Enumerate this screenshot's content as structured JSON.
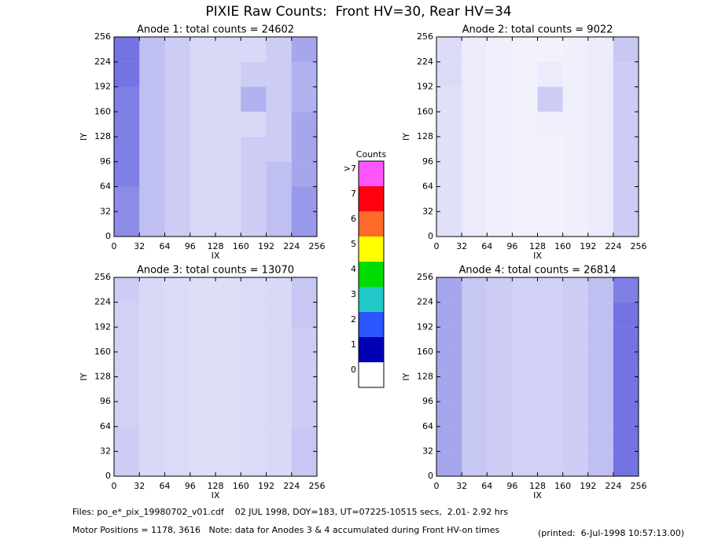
{
  "title": "PIXIE Raw Counts:  Front HV=30, Rear HV=34",
  "chart_data": [
    {
      "type": "heatmap",
      "title": "Anode 1: total counts = 24602",
      "xlabel": "IX",
      "ylabel": "IY",
      "xlim": [
        0,
        256
      ],
      "ylim": [
        0,
        256
      ],
      "xticks": [
        0,
        32,
        64,
        96,
        128,
        160,
        192,
        224,
        256
      ],
      "yticks": [
        0,
        32,
        64,
        96,
        128,
        160,
        192,
        224,
        256
      ],
      "xbins": [
        0,
        32,
        64,
        96,
        128,
        160,
        192,
        224,
        256
      ],
      "ybins": [
        0,
        32,
        64,
        96,
        128,
        160,
        192,
        224,
        256
      ],
      "color": "#0000cc",
      "z": [
        [
          0.45,
          0.25,
          0.2,
          0.15,
          0.15,
          0.2,
          0.25,
          0.4
        ],
        [
          0.45,
          0.25,
          0.2,
          0.15,
          0.15,
          0.2,
          0.25,
          0.4
        ],
        [
          0.5,
          0.25,
          0.2,
          0.15,
          0.15,
          0.2,
          0.25,
          0.35
        ],
        [
          0.5,
          0.25,
          0.2,
          0.15,
          0.15,
          0.2,
          0.2,
          0.35
        ],
        [
          0.5,
          0.25,
          0.2,
          0.15,
          0.15,
          0.15,
          0.2,
          0.35
        ],
        [
          0.5,
          0.25,
          0.2,
          0.15,
          0.15,
          0.3,
          0.2,
          0.3
        ],
        [
          0.55,
          0.25,
          0.2,
          0.15,
          0.15,
          0.2,
          0.2,
          0.3
        ],
        [
          0.55,
          0.25,
          0.2,
          0.15,
          0.15,
          0.15,
          0.2,
          0.35
        ]
      ]
    },
    {
      "type": "heatmap",
      "title": "Anode 2: total counts = 9022",
      "xlabel": "IX",
      "ylabel": "IY",
      "xlim": [
        0,
        256
      ],
      "ylim": [
        0,
        256
      ],
      "xticks": [
        0,
        32,
        64,
        96,
        128,
        160,
        192,
        224,
        256
      ],
      "yticks": [
        0,
        32,
        64,
        96,
        128,
        160,
        192,
        224,
        256
      ],
      "xbins": [
        0,
        32,
        64,
        96,
        128,
        160,
        192,
        224,
        256
      ],
      "ybins": [
        0,
        32,
        64,
        96,
        128,
        160,
        192,
        224,
        256
      ],
      "color": "#0000cc",
      "z": [
        [
          0.12,
          0.08,
          0.06,
          0.05,
          0.05,
          0.06,
          0.08,
          0.2
        ],
        [
          0.12,
          0.08,
          0.06,
          0.05,
          0.05,
          0.06,
          0.08,
          0.2
        ],
        [
          0.12,
          0.08,
          0.06,
          0.05,
          0.05,
          0.06,
          0.08,
          0.2
        ],
        [
          0.12,
          0.08,
          0.06,
          0.05,
          0.05,
          0.06,
          0.08,
          0.2
        ],
        [
          0.12,
          0.08,
          0.06,
          0.05,
          0.06,
          0.06,
          0.08,
          0.2
        ],
        [
          0.12,
          0.08,
          0.06,
          0.05,
          0.2,
          0.06,
          0.08,
          0.2
        ],
        [
          0.14,
          0.08,
          0.06,
          0.05,
          0.08,
          0.06,
          0.08,
          0.2
        ],
        [
          0.14,
          0.08,
          0.06,
          0.05,
          0.05,
          0.06,
          0.08,
          0.22
        ]
      ]
    },
    {
      "type": "heatmap",
      "title": "Anode 3: total counts = 13070",
      "xlabel": "IX",
      "ylabel": "IY",
      "xlim": [
        0,
        256
      ],
      "ylim": [
        0,
        256
      ],
      "xticks": [
        0,
        32,
        64,
        96,
        128,
        160,
        192,
        224,
        256
      ],
      "yticks": [
        0,
        32,
        64,
        96,
        128,
        160,
        192,
        224,
        256
      ],
      "xbins": [
        0,
        32,
        64,
        96,
        128,
        160,
        192,
        224,
        256
      ],
      "ybins": [
        0,
        32,
        64,
        96,
        128,
        160,
        192,
        224,
        256
      ],
      "color": "#0000cc",
      "z": [
        [
          0.2,
          0.15,
          0.14,
          0.13,
          0.13,
          0.14,
          0.15,
          0.22
        ],
        [
          0.2,
          0.15,
          0.14,
          0.13,
          0.13,
          0.14,
          0.15,
          0.22
        ],
        [
          0.18,
          0.15,
          0.14,
          0.13,
          0.13,
          0.14,
          0.15,
          0.2
        ],
        [
          0.18,
          0.15,
          0.14,
          0.13,
          0.13,
          0.14,
          0.15,
          0.2
        ],
        [
          0.18,
          0.15,
          0.14,
          0.13,
          0.13,
          0.14,
          0.15,
          0.2
        ],
        [
          0.18,
          0.15,
          0.14,
          0.13,
          0.13,
          0.14,
          0.15,
          0.2
        ],
        [
          0.18,
          0.15,
          0.14,
          0.13,
          0.13,
          0.14,
          0.15,
          0.22
        ],
        [
          0.2,
          0.15,
          0.14,
          0.13,
          0.13,
          0.14,
          0.15,
          0.22
        ]
      ]
    },
    {
      "type": "heatmap",
      "title": "Anode 4: total counts = 26814",
      "xlabel": "IX",
      "ylabel": "IY",
      "xlim": [
        0,
        256
      ],
      "ylim": [
        0,
        256
      ],
      "xticks": [
        0,
        32,
        64,
        96,
        128,
        160,
        192,
        224,
        256
      ],
      "yticks": [
        0,
        32,
        64,
        96,
        128,
        160,
        192,
        224,
        256
      ],
      "xbins": [
        0,
        32,
        64,
        96,
        128,
        160,
        192,
        224,
        256
      ],
      "ybins": [
        0,
        32,
        64,
        96,
        128,
        160,
        192,
        224,
        256
      ],
      "color": "#0000cc",
      "z": [
        [
          0.35,
          0.22,
          0.2,
          0.18,
          0.18,
          0.2,
          0.25,
          0.55
        ],
        [
          0.35,
          0.22,
          0.2,
          0.18,
          0.18,
          0.2,
          0.25,
          0.55
        ],
        [
          0.35,
          0.22,
          0.2,
          0.18,
          0.18,
          0.2,
          0.25,
          0.55
        ],
        [
          0.35,
          0.22,
          0.2,
          0.18,
          0.18,
          0.2,
          0.25,
          0.55
        ],
        [
          0.35,
          0.22,
          0.2,
          0.18,
          0.18,
          0.2,
          0.25,
          0.55
        ],
        [
          0.35,
          0.22,
          0.2,
          0.18,
          0.18,
          0.2,
          0.25,
          0.55
        ],
        [
          0.35,
          0.22,
          0.2,
          0.18,
          0.18,
          0.2,
          0.25,
          0.55
        ],
        [
          0.35,
          0.22,
          0.2,
          0.18,
          0.18,
          0.2,
          0.25,
          0.5
        ]
      ]
    }
  ],
  "colorbar": {
    "title": "Counts",
    "levels": [
      {
        "label": "0",
        "color": "#ffffff"
      },
      {
        "label": "1",
        "color": "#0000b4"
      },
      {
        "label": "2",
        "color": "#2a55ff"
      },
      {
        "label": "3",
        "color": "#20c8c8"
      },
      {
        "label": "4",
        "color": "#00dc00"
      },
      {
        "label": "5",
        "color": "#ffff00"
      },
      {
        "label": "6",
        "color": "#ff6a2a"
      },
      {
        "label": "7",
        "color": "#ff0010"
      },
      {
        "label": ">7",
        "color": "#ff55ff"
      }
    ]
  },
  "footer": {
    "files": "Files: po_e*_pix_19980702_v01.cdf    02 JUL 1998, DOY=183, UT=07225-10515 secs,  2.01- 2.92 hrs",
    "motor": "Motor Positions = 1178, 3616   Note: data for Anodes 3 & 4 accumulated during Front HV-on times",
    "printed": "(printed:  6-Jul-1998 10:57:13.00)"
  }
}
